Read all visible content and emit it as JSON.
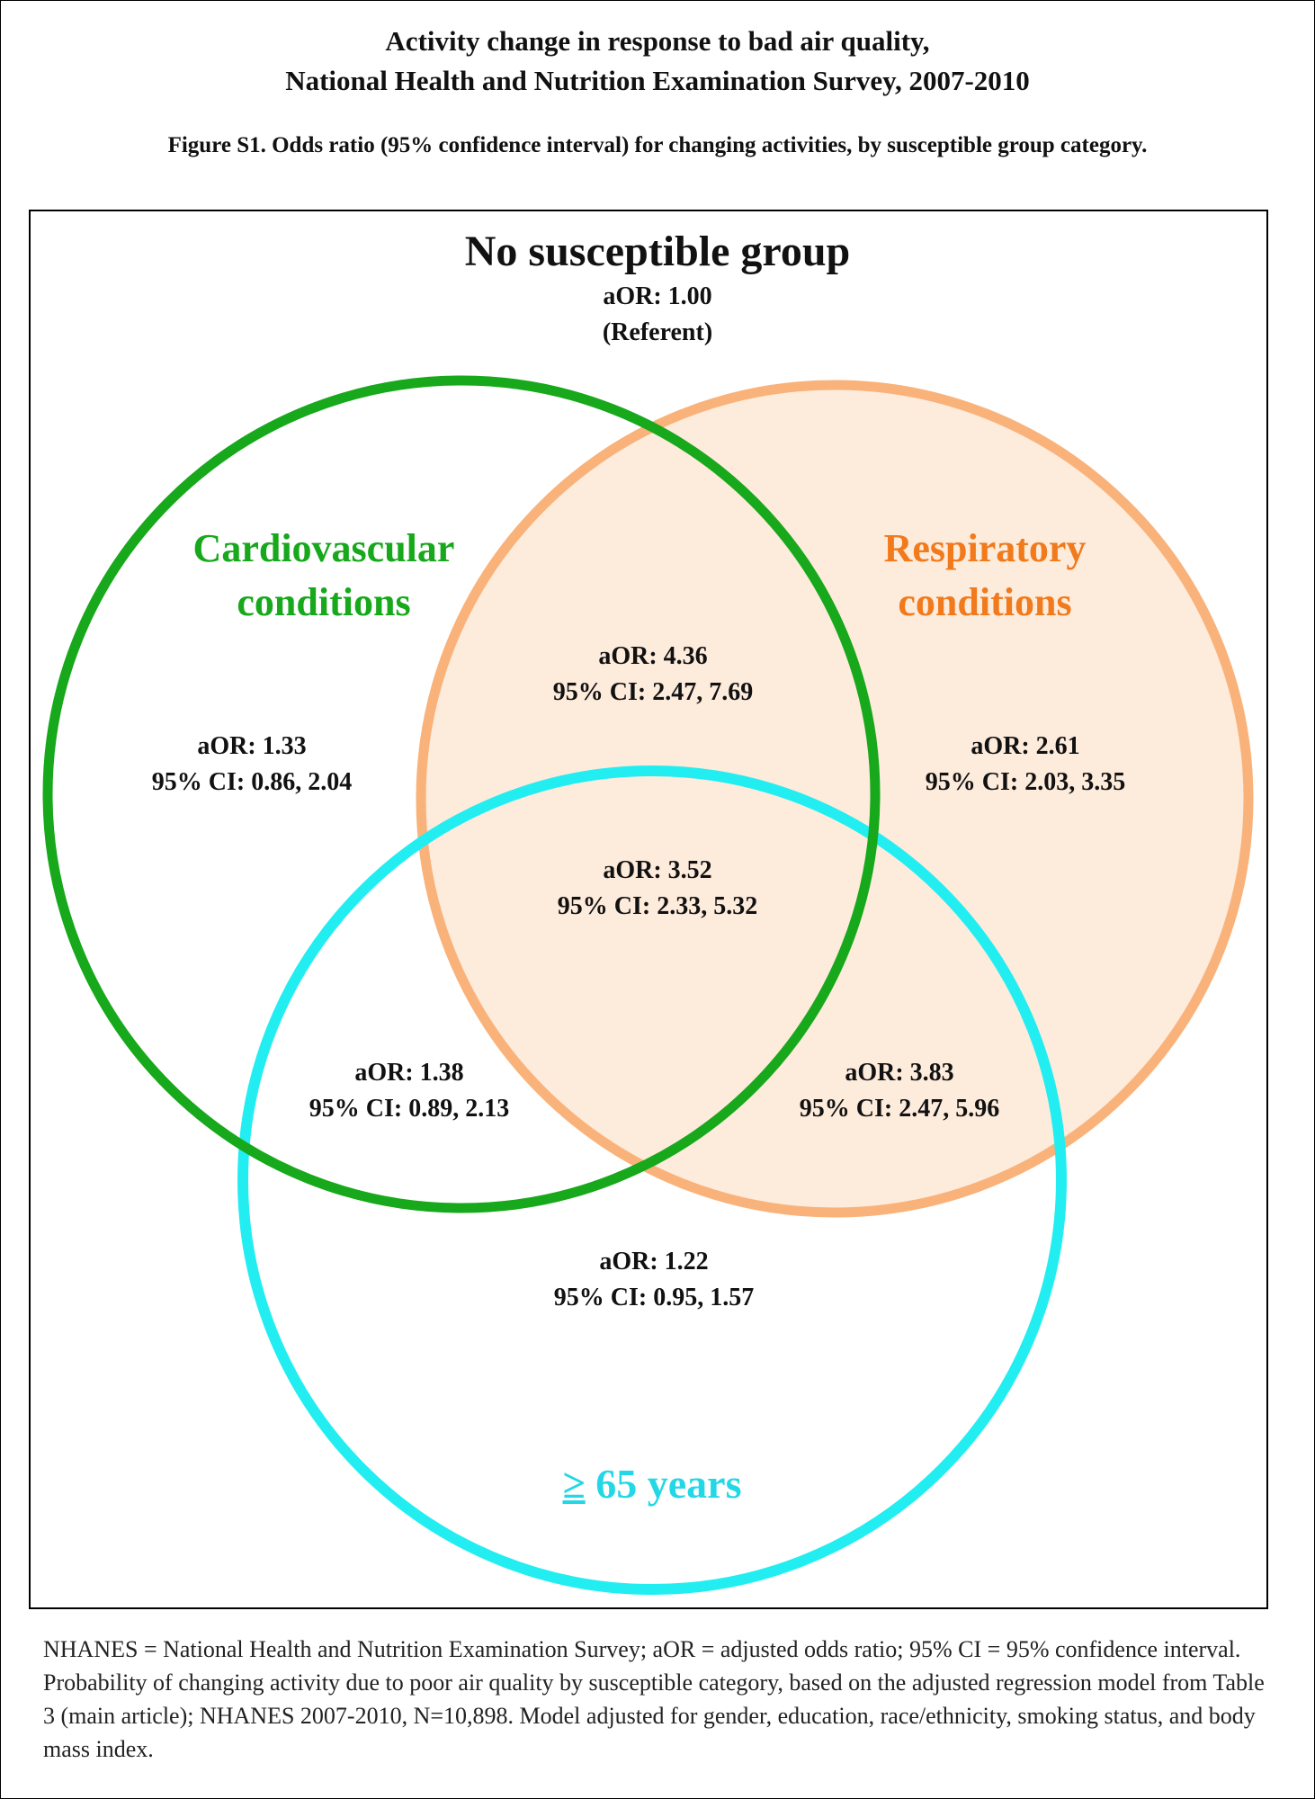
{
  "header": {
    "title_line1": "Activity change in response to bad air quality,",
    "title_line2": "National Health and Nutrition Examination Survey, 2007-2010",
    "figure_caption": "Figure S1.  Odds ratio (95% confidence interval) for changing activities, by susceptible group category."
  },
  "diagram": {
    "no_group": {
      "title": "No susceptible group",
      "aor": "aOR: 1.00",
      "note": "(Referent)"
    },
    "sets": {
      "cardio": {
        "label_line1": "Cardiovascular",
        "label_line2": "conditions",
        "color": "#17a81b"
      },
      "resp": {
        "label_line1": "Respiratory",
        "label_line2": "conditions",
        "color": "#f9b27a",
        "fill": "#fdebdc",
        "text_color": "#f17a1c"
      },
      "age": {
        "label_symbol": "≥",
        "label_text": " 65 years",
        "color": "#22eef2",
        "text_color": "#22d8e6"
      }
    },
    "regions": {
      "cardio_only": {
        "aor": "aOR: 1.33",
        "ci": "95% CI: 0.86, 2.04"
      },
      "cardio_resp": {
        "aor": "aOR: 4.36",
        "ci": "95% CI: 2.47, 7.69"
      },
      "resp_only": {
        "aor": "aOR: 2.61",
        "ci": "95% CI: 2.03, 3.35"
      },
      "all_three": {
        "aor": "aOR: 3.52",
        "ci": "95% CI: 2.33, 5.32"
      },
      "cardio_age": {
        "aor": "aOR: 1.38",
        "ci": "95% CI: 0.89, 2.13"
      },
      "resp_age": {
        "aor": "aOR: 3.83",
        "ci": "95% CI: 2.47, 5.96"
      },
      "age_only": {
        "aor": "aOR: 1.22",
        "ci": "95% CI: 0.95, 1.57"
      }
    }
  },
  "footnote": "NHANES = National Health and Nutrition Examination Survey; aOR = adjusted odds ratio; 95% CI = 95% confidence interval.  Probability of changing activity due to poor air quality by susceptible category, based on the adjusted regression model from Table 3 (main article); NHANES 2007-2010, N=10,898.  Model adjusted for gender, education, race/ethnicity, smoking status, and body mass index."
}
